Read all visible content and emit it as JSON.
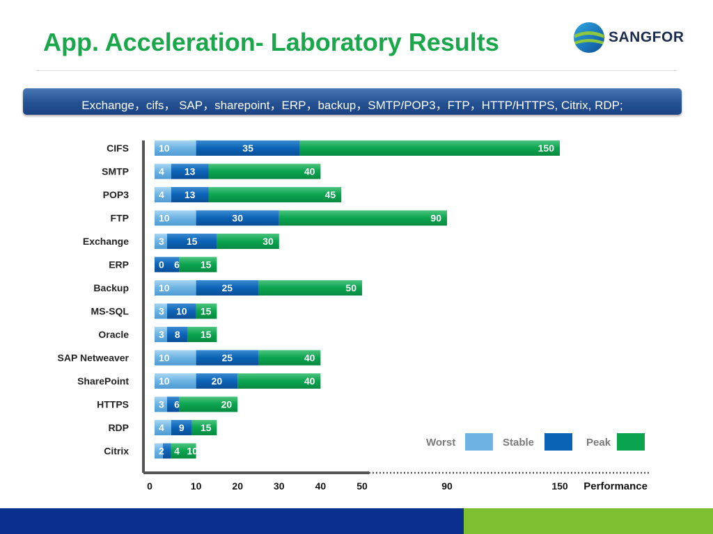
{
  "title": "App. Acceleration- Laboratory Results",
  "logo": {
    "text": "SANGFOR"
  },
  "banner": {
    "text": "Exchange，cifs， SAP，sharepoint，ERP，backup，SMTP/POP3，FTP，HTTP/HTTPS, Citrix, RDP;"
  },
  "colors": {
    "title": "#1aa64a",
    "worst": "#6cb3e3",
    "stable": "#0b63b6",
    "peak": "#0aa44f",
    "footer_blue": "#0b2f8c",
    "footer_green": "#7dbf31"
  },
  "chart_data": {
    "type": "bar",
    "orientation": "horizontal",
    "categories": [
      "CIFS",
      "SMTP",
      "POP3",
      "FTP",
      "Exchange",
      "ERP",
      "Backup",
      "MS-SQL",
      "Oracle",
      "SAP Netweaver",
      "SharePoint",
      "HTTPS",
      "RDP",
      "Citrix"
    ],
    "series": [
      {
        "name": "Worst",
        "values": [
          10,
          4,
          4,
          10,
          3,
          0,
          10,
          3,
          3,
          10,
          10,
          3,
          4,
          2
        ]
      },
      {
        "name": "Stable",
        "values": [
          35,
          13,
          13,
          30,
          15,
          6,
          25,
          10,
          8,
          25,
          20,
          6,
          9,
          4
        ]
      },
      {
        "name": "Peak",
        "values": [
          150,
          40,
          45,
          90,
          30,
          15,
          50,
          15,
          15,
          40,
          40,
          20,
          15,
          10
        ]
      }
    ],
    "x_ticks": [
      "0",
      "10",
      "20",
      "30",
      "40",
      "50",
      "90",
      "150"
    ],
    "xlabel": "Performance",
    "axis_scale": "piecewise: linear 0-50, compressed 50-150",
    "legend": {
      "position": "bottom-right",
      "items": [
        "Worst",
        "Stable",
        "Peak"
      ]
    }
  }
}
